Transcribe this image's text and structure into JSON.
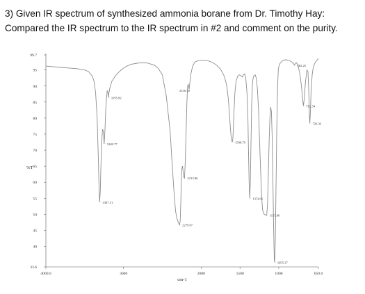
{
  "question": {
    "line1": "3) Given IR spectrum of synthesized ammonia borane from Dr. Timothy Hay:",
    "line2": "Compared the IR spectrum to the IR spectrum in #2 and comment on the purity."
  },
  "chart_data": {
    "type": "line",
    "title": "",
    "xlabel": "cm-1",
    "ylabel": "%T",
    "xlim": [
      4000.0,
      650.0
    ],
    "ylim": [
      33.6,
      99.7
    ],
    "x_ticks": [
      "4000.0",
      "3000",
      "2000",
      "1500",
      "1000",
      "650.0"
    ],
    "x_tick_values": [
      4000,
      3000,
      2000,
      1500,
      1000,
      650
    ],
    "y_ticks": [
      "99.7",
      "95",
      "90",
      "85",
      "80",
      "75",
      "70",
      "65",
      "60",
      "55",
      "50",
      "45",
      "40",
      "33.6"
    ],
    "y_tick_values": [
      99.7,
      95,
      90,
      85,
      80,
      75,
      70,
      65,
      60,
      55,
      50,
      45,
      40,
      33.6
    ],
    "grid": false,
    "line_color": "#8c8c8c",
    "peak_labels": [
      {
        "label": "3307.51",
        "x": 3307.51,
        "y": 53.8
      },
      {
        "label": "3195.82",
        "x": 3195.82,
        "y": 86.4
      },
      {
        "label": "3249.77",
        "x": 3249.77,
        "y": 72.0
      },
      {
        "label": "2316.30",
        "x": 2316.3,
        "y": 88.7
      },
      {
        "label": "2279.07",
        "x": 2279.07,
        "y": 46.7
      },
      {
        "label": "2213.86",
        "x": 2213.86,
        "y": 61.3
      },
      {
        "label": "1598.79",
        "x": 1598.79,
        "y": 72.5
      },
      {
        "label": "1374.06",
        "x": 1374.06,
        "y": 55.0
      },
      {
        "label": "1155.86",
        "x": 1155.86,
        "y": 49.7
      },
      {
        "label": "1055.37",
        "x": 1055.37,
        "y": 35.0
      },
      {
        "label": "862.25",
        "x": 862.25,
        "y": 96.5
      },
      {
        "label": "782.54",
        "x": 782.54,
        "y": 83.8
      },
      {
        "label": "726.33",
        "x": 726.33,
        "y": 78.4
      }
    ],
    "spectrum": [
      [
        4000,
        96.2
      ],
      [
        3900,
        96.0
      ],
      [
        3800,
        95.8
      ],
      [
        3700,
        95.6
      ],
      [
        3600,
        95.4
      ],
      [
        3500,
        95.0
      ],
      [
        3450,
        94.5
      ],
      [
        3400,
        93.0
      ],
      [
        3380,
        91.5
      ],
      [
        3360,
        88.0
      ],
      [
        3340,
        80.0
      ],
      [
        3325,
        68.0
      ],
      [
        3315,
        58.0
      ],
      [
        3307.5,
        53.8
      ],
      [
        3300,
        57.0
      ],
      [
        3290,
        66.0
      ],
      [
        3280,
        73.0
      ],
      [
        3270,
        76.5
      ],
      [
        3260,
        76.0
      ],
      [
        3250,
        72.0
      ],
      [
        3240,
        76.0
      ],
      [
        3230,
        82.0
      ],
      [
        3220,
        86.0
      ],
      [
        3210,
        88.5
      ],
      [
        3200,
        88.0
      ],
      [
        3195.8,
        86.4
      ],
      [
        3190,
        87.5
      ],
      [
        3175,
        89.5
      ],
      [
        3150,
        91.5
      ],
      [
        3100,
        93.3
      ],
      [
        3050,
        94.6
      ],
      [
        3000,
        95.6
      ],
      [
        2950,
        96.3
      ],
      [
        2900,
        96.8
      ],
      [
        2850,
        97.0
      ],
      [
        2800,
        97.2
      ],
      [
        2700,
        97.2
      ],
      [
        2600,
        96.5
      ],
      [
        2550,
        95.4
      ],
      [
        2500,
        93.5
      ],
      [
        2450,
        87.0
      ],
      [
        2400,
        76.0
      ],
      [
        2375,
        66.0
      ],
      [
        2350,
        57.0
      ],
      [
        2330,
        51.0
      ],
      [
        2310,
        48.5
      ],
      [
        2295,
        47.5
      ],
      [
        2279,
        46.7
      ],
      [
        2270,
        48.0
      ],
      [
        2262,
        54.0
      ],
      [
        2256,
        60.0
      ],
      [
        2250,
        64.0
      ],
      [
        2240,
        65.0
      ],
      [
        2230,
        63.0
      ],
      [
        2222,
        61.5
      ],
      [
        2214,
        61.3
      ],
      [
        2205,
        66.0
      ],
      [
        2195,
        75.0
      ],
      [
        2185,
        84.0
      ],
      [
        2175,
        90.0
      ],
      [
        2165,
        90.5
      ],
      [
        2155,
        89.0
      ],
      [
        2145,
        91.0
      ],
      [
        2130,
        94.0
      ],
      [
        2110,
        96.2
      ],
      [
        2080,
        97.5
      ],
      [
        2040,
        97.9
      ],
      [
        2000,
        98.0
      ],
      [
        1950,
        98.0
      ],
      [
        1900,
        97.8
      ],
      [
        1850,
        97.3
      ],
      [
        1800,
        96.5
      ],
      [
        1750,
        95.2
      ],
      [
        1700,
        93.0
      ],
      [
        1670,
        90.0
      ],
      [
        1650,
        86.0
      ],
      [
        1635,
        81.0
      ],
      [
        1625,
        77.5
      ],
      [
        1615,
        74.5
      ],
      [
        1605,
        73.0
      ],
      [
        1598.8,
        72.5
      ],
      [
        1592,
        73.5
      ],
      [
        1585,
        77.0
      ],
      [
        1575,
        83.0
      ],
      [
        1565,
        88.0
      ],
      [
        1550,
        91.5
      ],
      [
        1530,
        93.0
      ],
      [
        1510,
        93.5
      ],
      [
        1490,
        93.2
      ],
      [
        1470,
        92.8
      ],
      [
        1455,
        93.5
      ],
      [
        1440,
        93.8
      ],
      [
        1425,
        92.5
      ],
      [
        1410,
        88.0
      ],
      [
        1398,
        80.0
      ],
      [
        1390,
        70.0
      ],
      [
        1382,
        60.0
      ],
      [
        1374,
        55.0
      ],
      [
        1366,
        60.0
      ],
      [
        1358,
        72.0
      ],
      [
        1348,
        85.0
      ],
      [
        1338,
        91.5
      ],
      [
        1325,
        93.0
      ],
      [
        1305,
        93.5
      ],
      [
        1290,
        92.5
      ],
      [
        1275,
        89.0
      ],
      [
        1260,
        82.0
      ],
      [
        1248,
        73.0
      ],
      [
        1235,
        64.0
      ],
      [
        1222,
        56.0
      ],
      [
        1210,
        51.5
      ],
      [
        1195,
        50.2
      ],
      [
        1175,
        49.8
      ],
      [
        1156,
        49.7
      ],
      [
        1145,
        53.0
      ],
      [
        1135,
        62.0
      ],
      [
        1125,
        72.0
      ],
      [
        1115,
        80.0
      ],
      [
        1105,
        83.5
      ],
      [
        1095,
        82.0
      ],
      [
        1085,
        74.0
      ],
      [
        1075,
        60.0
      ],
      [
        1068,
        48.0
      ],
      [
        1062,
        40.0
      ],
      [
        1058,
        36.0
      ],
      [
        1055.4,
        35.0
      ],
      [
        1050,
        37.0
      ],
      [
        1045,
        42.0
      ],
      [
        1035,
        60.0
      ],
      [
        1025,
        78.0
      ],
      [
        1015,
        90.0
      ],
      [
        1005,
        95.5
      ],
      [
        990,
        97.0
      ],
      [
        970,
        97.8
      ],
      [
        940,
        98.2
      ],
      [
        910,
        98.0
      ],
      [
        885,
        97.5
      ],
      [
        870,
        97.0
      ],
      [
        862,
        96.5
      ],
      [
        855,
        97.0
      ],
      [
        845,
        97.3
      ],
      [
        830,
        96.5
      ],
      [
        815,
        94.0
      ],
      [
        800,
        90.0
      ],
      [
        790,
        86.0
      ],
      [
        782.5,
        83.8
      ],
      [
        775,
        86.0
      ],
      [
        765,
        91.0
      ],
      [
        752,
        95.0
      ],
      [
        742,
        94.5
      ],
      [
        735,
        88.0
      ],
      [
        730,
        81.0
      ],
      [
        726.3,
        78.4
      ],
      [
        722,
        81.0
      ],
      [
        715,
        88.0
      ],
      [
        705,
        93.5
      ],
      [
        695,
        96.0
      ],
      [
        680,
        97.2
      ],
      [
        665,
        98.0
      ],
      [
        650,
        98.5
      ]
    ]
  }
}
